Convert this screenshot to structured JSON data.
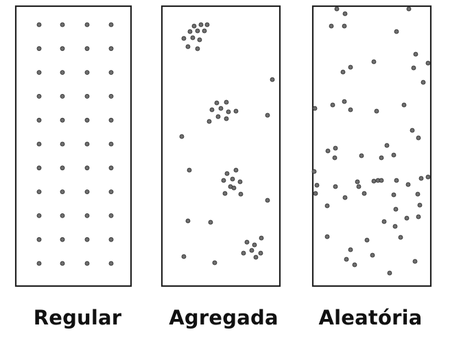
{
  "panels": [
    {
      "label": "Regular"
    },
    {
      "label": "Agregada"
    },
    {
      "label": "Aleatória"
    }
  ],
  "colors": {
    "frame": "#222222",
    "dot_fill": "#6e6e6e",
    "dot_stroke": "#2a2a2a",
    "text": "#111111"
  }
}
